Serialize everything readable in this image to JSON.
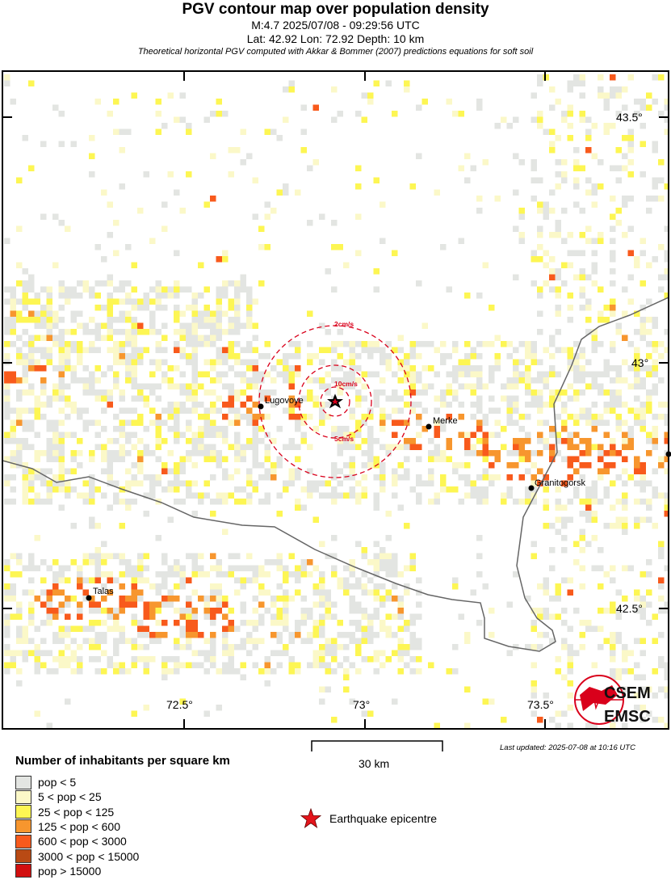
{
  "header": {
    "title": "PGV contour map over population density",
    "event": "M:4.7 2025/07/08 - 09:29:56 UTC",
    "location": "Lat: 42.92 Lon: 72.92 Depth: 10 km",
    "method": "Theoretical horizontal PGV computed with Akkar & Bommer (2007) predictions equations for soft soil"
  },
  "map": {
    "lon_ticks": [
      "72.5°",
      "73°",
      "73.5°"
    ],
    "lat_ticks": [
      "43.5°",
      "43°",
      "42.5°"
    ],
    "epicentre": {
      "lat": 42.92,
      "lon": 72.92
    },
    "contours": [
      {
        "label": "2cm/s",
        "color": "#d9001b"
      },
      {
        "label": "5cm/s",
        "color": "#d9001b"
      },
      {
        "label": "10cm/s",
        "color": "#d9001b"
      }
    ],
    "cities": [
      "Lugovoye",
      "Merke",
      "Granitogorsk",
      "Talas"
    ],
    "logo": {
      "line1": "CSEM",
      "line2": "EMSC"
    }
  },
  "scale_bar": {
    "label": "30 km"
  },
  "last_updated": "Last updated: 2025-07-08 at 10:16 UTC",
  "legend": {
    "title": "Number of inhabitants per square km",
    "items": [
      {
        "label": "pop < 5",
        "color": "#e3e5e2"
      },
      {
        "label": "5 < pop < 25",
        "color": "#fbf8c8"
      },
      {
        "label": "25 < pop < 125",
        "color": "#fdf653"
      },
      {
        "label": "125 < pop < 600",
        "color": "#f7962e"
      },
      {
        "label": "600 < pop < 3000",
        "color": "#f85a1c"
      },
      {
        "label": "3000 < pop < 15000",
        "color": "#b94a14"
      },
      {
        "label": "pop > 15000",
        "color": "#d20f0f"
      }
    ],
    "epicentre_label": "Earthquake epicentre"
  }
}
